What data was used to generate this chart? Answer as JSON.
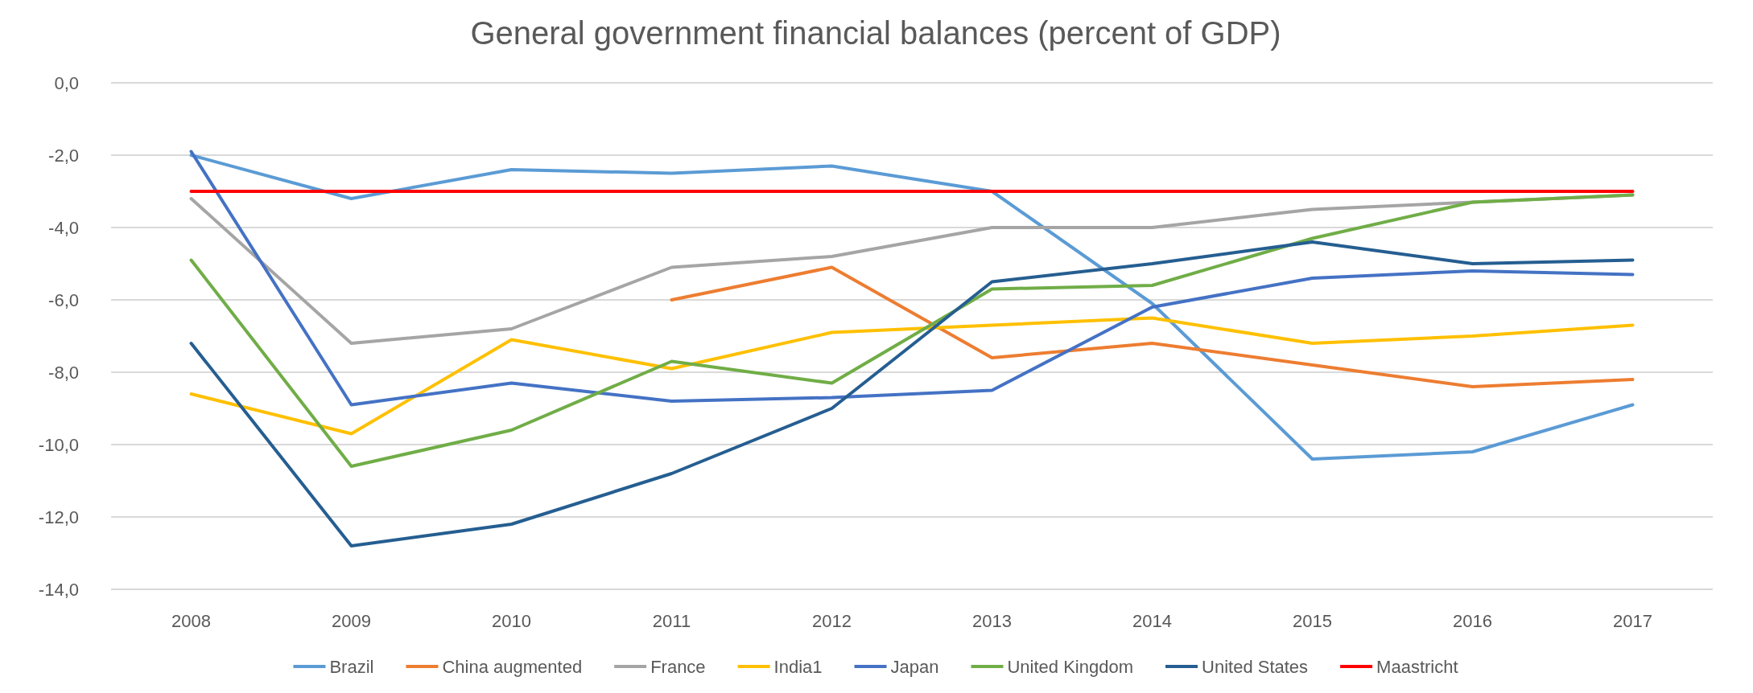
{
  "chart_data": {
    "type": "line",
    "title": "General government financial balances (percent of GDP)",
    "categories": [
      "2008",
      "2009",
      "2010",
      "2011",
      "2012",
      "2013",
      "2014",
      "2015",
      "2016",
      "2017"
    ],
    "ylim": [
      -14,
      0
    ],
    "yticks": [
      {
        "value": -14,
        "label": "-14,0"
      },
      {
        "value": -12,
        "label": "-12,0"
      },
      {
        "value": -10,
        "label": "-10,0"
      },
      {
        "value": -8,
        "label": "-8,0"
      },
      {
        "value": -6,
        "label": "-6,0"
      },
      {
        "value": -4,
        "label": "-4,0"
      },
      {
        "value": -2,
        "label": "-2,0"
      },
      {
        "value": 0,
        "label": "0,0"
      }
    ],
    "grid": "y",
    "legend": "bottom",
    "marker": "none",
    "line_style": "solid",
    "series": [
      {
        "name": "Brazil",
        "color": "#5b9bd5",
        "values": [
          -2.0,
          -3.2,
          -2.4,
          -2.5,
          -2.3,
          -3.0,
          -6.1,
          -10.4,
          -10.2,
          -8.9
        ]
      },
      {
        "name": "China augmented",
        "color": "#ed7d31",
        "values": [
          null,
          null,
          null,
          -6.0,
          -5.1,
          -7.6,
          -7.2,
          -7.8,
          -8.4,
          -8.2
        ]
      },
      {
        "name": "France",
        "color": "#a5a5a5",
        "values": [
          -3.2,
          -7.2,
          -6.8,
          -5.1,
          -4.8,
          -4.0,
          -4.0,
          -3.5,
          -3.3,
          -3.1
        ]
      },
      {
        "name": "India1",
        "color": "#ffc000",
        "values": [
          -8.6,
          -9.7,
          -7.1,
          -7.9,
          -6.9,
          -6.7,
          -6.5,
          -7.2,
          -7.0,
          -6.7
        ]
      },
      {
        "name": "Japan",
        "color": "#4472c4",
        "values": [
          -1.9,
          -8.9,
          -8.3,
          -8.8,
          -8.7,
          -8.5,
          -6.2,
          -5.4,
          -5.2,
          -5.3
        ]
      },
      {
        "name": "United Kingdom",
        "color": "#70ad47",
        "values": [
          -4.9,
          -10.6,
          -9.6,
          -7.7,
          -8.3,
          -5.7,
          -5.6,
          -4.3,
          -3.3,
          -3.1
        ]
      },
      {
        "name": "United States",
        "color": "#255e91",
        "values": [
          -7.2,
          -12.8,
          -12.2,
          -10.8,
          -9.0,
          -5.5,
          -5.0,
          -4.4,
          -5.0,
          -4.9
        ]
      },
      {
        "name": "Maastricht",
        "color": "#ff0000",
        "values": [
          -3,
          -3,
          -3,
          -3,
          -3,
          -3,
          -3,
          -3,
          -3,
          -3
        ]
      }
    ]
  }
}
